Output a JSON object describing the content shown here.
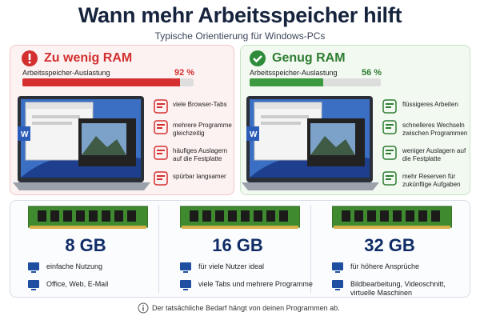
{
  "title": "Wann mehr Arbeitsspeicher hilft",
  "subtitle": "Typische Orientierung für Windows-PCs",
  "panels": [
    {
      "heading": "Zu wenig RAM",
      "usage_label": "Arbeitsspeicher-Auslastung",
      "usage": {
        "value": 92,
        "label": "92 %"
      },
      "items": [
        "viele Browser-Tabs",
        "mehrere Programme gleichzeitig",
        "häufiges Auslagern auf die Festplatte",
        "spürbar langsamer"
      ]
    },
    {
      "heading": "Genug RAM",
      "usage_label": "Arbeitsspeicher-Auslastung",
      "usage": {
        "value": 56,
        "label": "56 %"
      },
      "items": [
        "flüssigeres Arbeiten",
        "schnelleres Wechseln zwischen Programmen",
        "weniger Auslagern auf die Festplatte",
        "mehr Reserven für zukünftige Aufgaben"
      ]
    }
  ],
  "ram": [
    {
      "size": "8 GB",
      "uses": [
        "einfache Nutzung",
        "Office, Web, E-Mail"
      ]
    },
    {
      "size": "16 GB",
      "uses": [
        "für viele Nutzer ideal",
        "viele Tabs und mehrere Programme"
      ]
    },
    {
      "size": "32 GB",
      "uses": [
        "für höhere Ansprüche",
        "Bildbearbeitung, Videoschnitt, virtuelle Maschinen"
      ]
    }
  ],
  "footnote": "Der tatsächliche Bedarf hängt von deinen Programmen ab."
}
